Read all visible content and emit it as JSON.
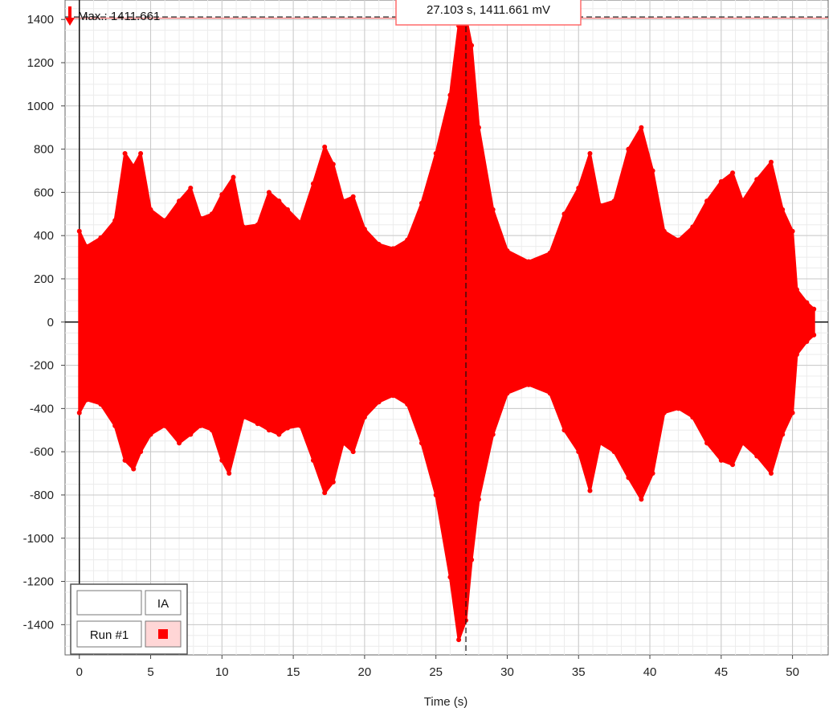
{
  "chart_data": {
    "type": "line",
    "xlabel": "Time (s)",
    "ylabel": "",
    "xlim": [
      -1,
      52.5
    ],
    "ylim": [
      -1540,
      1490
    ],
    "x_ticks": [
      0,
      5,
      10,
      15,
      20,
      25,
      30,
      35,
      40,
      45,
      50
    ],
    "y_ticks": [
      -1400,
      -1200,
      -1000,
      -800,
      -600,
      -400,
      -200,
      0,
      200,
      400,
      600,
      800,
      1000,
      1200,
      1400
    ],
    "grid": true,
    "legend_position": "bottom-left",
    "series": [
      {
        "name": "Run #1",
        "color": "#ff0000",
        "envelope_upper": [
          [
            0,
            420
          ],
          [
            0.5,
            350
          ],
          [
            1.5,
            390
          ],
          [
            2.5,
            470
          ],
          [
            3.2,
            780
          ],
          [
            3.8,
            720
          ],
          [
            4.3,
            780
          ],
          [
            5,
            520
          ],
          [
            6,
            470
          ],
          [
            7,
            560
          ],
          [
            7.8,
            620
          ],
          [
            8.5,
            480
          ],
          [
            9.3,
            500
          ],
          [
            10,
            590
          ],
          [
            10.8,
            670
          ],
          [
            11.5,
            440
          ],
          [
            12.5,
            450
          ],
          [
            13.3,
            600
          ],
          [
            14,
            560
          ],
          [
            14.6,
            520
          ],
          [
            15.5,
            460
          ],
          [
            16.4,
            640
          ],
          [
            17.2,
            810
          ],
          [
            17.8,
            730
          ],
          [
            18.5,
            560
          ],
          [
            19.2,
            580
          ],
          [
            20,
            430
          ],
          [
            21,
            360
          ],
          [
            22,
            340
          ],
          [
            23,
            380
          ],
          [
            24,
            550
          ],
          [
            25,
            780
          ],
          [
            26,
            1050
          ],
          [
            26.6,
            1370
          ],
          [
            27.1,
            1411
          ],
          [
            27.5,
            1280
          ],
          [
            28,
            900
          ],
          [
            29,
            520
          ],
          [
            30,
            330
          ],
          [
            31.5,
            280
          ],
          [
            33,
            320
          ],
          [
            34,
            500
          ],
          [
            35,
            620
          ],
          [
            35.8,
            780
          ],
          [
            36.5,
            540
          ],
          [
            37.5,
            560
          ],
          [
            38.5,
            800
          ],
          [
            39.4,
            900
          ],
          [
            40.2,
            700
          ],
          [
            41,
            420
          ],
          [
            42,
            380
          ],
          [
            43,
            440
          ],
          [
            44,
            560
          ],
          [
            45,
            650
          ],
          [
            45.8,
            690
          ],
          [
            46.5,
            560
          ],
          [
            47.5,
            660
          ],
          [
            48.5,
            740
          ],
          [
            49.3,
            520
          ],
          [
            50,
            420
          ],
          [
            50.3,
            150
          ],
          [
            51,
            90
          ],
          [
            51.5,
            60
          ]
        ],
        "envelope_lower": [
          [
            0,
            -420
          ],
          [
            0.5,
            -360
          ],
          [
            1.5,
            -380
          ],
          [
            2.5,
            -480
          ],
          [
            3.2,
            -640
          ],
          [
            3.8,
            -680
          ],
          [
            4.3,
            -600
          ],
          [
            5,
            -520
          ],
          [
            6,
            -480
          ],
          [
            7,
            -560
          ],
          [
            7.8,
            -520
          ],
          [
            8.5,
            -480
          ],
          [
            9.3,
            -500
          ],
          [
            10,
            -640
          ],
          [
            10.5,
            -700
          ],
          [
            11.5,
            -440
          ],
          [
            12.5,
            -470
          ],
          [
            13.3,
            -500
          ],
          [
            14,
            -520
          ],
          [
            14.6,
            -490
          ],
          [
            15.5,
            -480
          ],
          [
            16.4,
            -640
          ],
          [
            17.2,
            -790
          ],
          [
            17.8,
            -740
          ],
          [
            18.5,
            -560
          ],
          [
            19.2,
            -600
          ],
          [
            20,
            -440
          ],
          [
            21,
            -370
          ],
          [
            22,
            -340
          ],
          [
            23,
            -380
          ],
          [
            24,
            -560
          ],
          [
            25,
            -800
          ],
          [
            26,
            -1180
          ],
          [
            26.6,
            -1470
          ],
          [
            27.1,
            -1380
          ],
          [
            27.5,
            -1100
          ],
          [
            28,
            -820
          ],
          [
            29,
            -520
          ],
          [
            30,
            -330
          ],
          [
            31.5,
            -290
          ],
          [
            33,
            -330
          ],
          [
            34,
            -500
          ],
          [
            35,
            -600
          ],
          [
            35.8,
            -780
          ],
          [
            36.5,
            -560
          ],
          [
            37.5,
            -600
          ],
          [
            38.5,
            -720
          ],
          [
            39.4,
            -820
          ],
          [
            40.2,
            -700
          ],
          [
            41,
            -420
          ],
          [
            42,
            -400
          ],
          [
            43,
            -440
          ],
          [
            44,
            -560
          ],
          [
            45,
            -640
          ],
          [
            45.8,
            -660
          ],
          [
            46.5,
            -560
          ],
          [
            47.5,
            -620
          ],
          [
            48.5,
            -700
          ],
          [
            49.3,
            -520
          ],
          [
            50,
            -420
          ],
          [
            50.3,
            -150
          ],
          [
            51,
            -90
          ],
          [
            51.5,
            -60
          ]
        ]
      }
    ],
    "max_marker": {
      "label": "Max.: 1411.661",
      "value": 1411.661,
      "time": 27.103,
      "tooltip": "27.103 s, 1411.661 mV"
    },
    "legend": {
      "header_right": "IA",
      "row_label": "Run #1",
      "swatch_color": "#ff0000"
    }
  }
}
